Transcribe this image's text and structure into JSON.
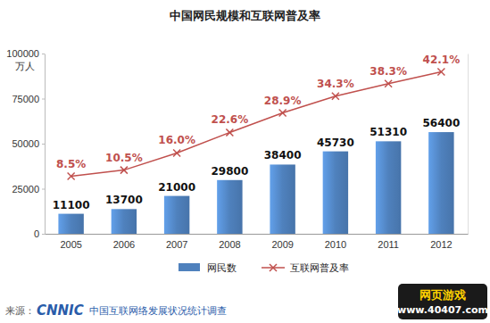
{
  "chart_data": {
    "type": "bar",
    "title": "中国网民规模和互联网普及率",
    "y_label": "万人",
    "categories": [
      "2005",
      "2006",
      "2007",
      "2008",
      "2009",
      "2010",
      "2011",
      "2012"
    ],
    "series": [
      {
        "name": "网民数",
        "type": "bar",
        "color": "#4f81bd",
        "values": [
          11100,
          13700,
          21000,
          29800,
          38400,
          45730,
          51310,
          56400
        ]
      },
      {
        "name": "互联网普及率",
        "type": "line",
        "axis": "y2",
        "color": "#c0504d",
        "marker": "x",
        "values": [
          8.5,
          10.5,
          16.0,
          22.6,
          28.9,
          34.3,
          38.3,
          42.1
        ],
        "value_labels": [
          "8.5%",
          "10.5%",
          "16.0%",
          "22.6%",
          "28.9%",
          "34.3%",
          "38.3%",
          "42.1%"
        ]
      }
    ],
    "ylim": [
      0,
      100000
    ],
    "yticks": [
      0,
      25000,
      50000,
      75000,
      100000
    ],
    "y2lim": [
      -10,
      48
    ],
    "grid": false,
    "legend": "bottom",
    "data_labels": true,
    "annotations": [
      "来源：",
      "CNNIC",
      "中国互联网络发展状况统计调查",
      "网页游戏",
      "www.40407.com"
    ]
  }
}
